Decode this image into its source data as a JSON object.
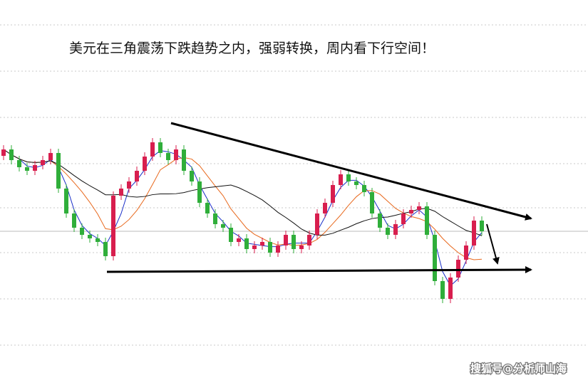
{
  "chart_data": {
    "type": "candlestick",
    "title": "美元在三角震荡下跌趋势之内，强弱转换，周内看下行空间！",
    "watermark": "搜狐号@分析师山海",
    "up_color": "#d81e4e",
    "down_color": "#2fae3a",
    "open": [
      315,
      324,
      309,
      299,
      294,
      302,
      309,
      319,
      269,
      234,
      214,
      204,
      199,
      194,
      174,
      259,
      269,
      279,
      294,
      314,
      334,
      319,
      309,
      324,
      294,
      279,
      249,
      234,
      219,
      214,
      194,
      199,
      184,
      189,
      194,
      179,
      189,
      204,
      184,
      189,
      204,
      234,
      249,
      274,
      289,
      279,
      274,
      264,
      234,
      214,
      204,
      219,
      234,
      239,
      244,
      204,
      139,
      114,
      144,
      169,
      189,
      224
    ],
    "high": [
      330,
      330,
      315,
      305,
      308,
      315,
      325,
      325,
      275,
      240,
      220,
      210,
      205,
      200,
      265,
      275,
      285,
      300,
      320,
      340,
      340,
      325,
      330,
      330,
      300,
      285,
      255,
      240,
      225,
      220,
      205,
      205,
      195,
      200,
      200,
      195,
      210,
      210,
      195,
      210,
      240,
      255,
      280,
      295,
      295,
      285,
      280,
      270,
      240,
      220,
      225,
      240,
      245,
      250,
      250,
      210,
      145,
      150,
      175,
      195,
      230,
      230
    ],
    "low": [
      309,
      303,
      293,
      288,
      288,
      296,
      303,
      263,
      228,
      208,
      198,
      193,
      188,
      168,
      168,
      253,
      263,
      273,
      288,
      308,
      313,
      303,
      303,
      288,
      273,
      243,
      228,
      213,
      208,
      188,
      188,
      178,
      178,
      183,
      173,
      173,
      183,
      178,
      178,
      183,
      198,
      228,
      243,
      268,
      273,
      268,
      258,
      228,
      208,
      198,
      198,
      213,
      228,
      233,
      198,
      133,
      108,
      108,
      138,
      163,
      183,
      203
    ],
    "close": [
      324,
      309,
      299,
      294,
      302,
      309,
      319,
      269,
      234,
      214,
      204,
      199,
      194,
      174,
      259,
      269,
      279,
      294,
      314,
      334,
      319,
      309,
      324,
      294,
      279,
      249,
      234,
      219,
      214,
      194,
      199,
      184,
      189,
      194,
      179,
      189,
      204,
      184,
      189,
      204,
      234,
      249,
      274,
      289,
      279,
      274,
      264,
      234,
      214,
      204,
      219,
      234,
      239,
      244,
      204,
      139,
      114,
      144,
      169,
      189,
      224,
      209
    ]
  }
}
